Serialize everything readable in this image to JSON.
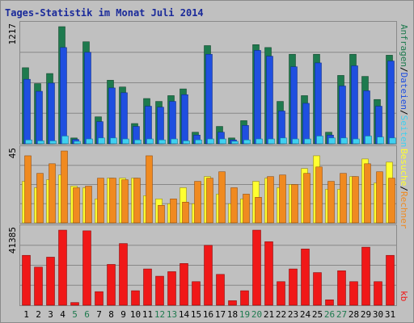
{
  "chart_data": {
    "title": "Tages-Statistik im Monat Juli 2014",
    "days": [
      "1",
      "2",
      "3",
      "4",
      "5",
      "6",
      "7",
      "8",
      "9",
      "10",
      "11",
      "12",
      "13",
      "14",
      "15",
      "16",
      "17",
      "18",
      "19",
      "20",
      "21",
      "22",
      "23",
      "24",
      "25",
      "26",
      "27",
      "28",
      "29",
      "30",
      "31"
    ],
    "weekend_days": [
      "5",
      "6",
      "12",
      "13",
      "19",
      "20",
      "26",
      "27"
    ],
    "colors": {
      "background": "#c0c0c0",
      "frame": "#8a8a8a",
      "gridline": "#888888",
      "anfragen": "#1e7a4e",
      "dateien": "#1f4fe0",
      "seiten": "#40d0f0",
      "besuche": "#ffff30",
      "rechner": "#f08a20",
      "kb": "#f01818",
      "weekday_label": "#000000",
      "weekend_label": "#1e7a4e",
      "title": "#1a2a9a"
    },
    "panels": [
      {
        "type": "bar",
        "ymax": "1217",
        "series": [
          {
            "name": "Anfragen",
            "values": [
              790,
              625,
              730,
              1217,
              60,
              1060,
              280,
              660,
              590,
              210,
              470,
              440,
              500,
              570,
              120,
              1020,
              180,
              60,
              240,
              1030,
              1000,
              440,
              930,
              500,
              930,
              120,
              710,
              930,
              700,
              460,
              920
            ]
          },
          {
            "name": "Dateien",
            "values": [
              670,
              545,
              630,
              1000,
              45,
              950,
              230,
              580,
              530,
              180,
              390,
              380,
              440,
              510,
              90,
              930,
              120,
              40,
              190,
              970,
              910,
              340,
              800,
              420,
              840,
              90,
              600,
              810,
              550,
              390,
              860
            ]
          },
          {
            "name": "Seiten",
            "values": [
              40,
              30,
              30,
              80,
              20,
              50,
              60,
              60,
              50,
              40,
              50,
              40,
              50,
              30,
              40,
              50,
              50,
              25,
              40,
              50,
              50,
              60,
              50,
              50,
              80,
              60,
              60,
              50,
              80,
              70,
              60
            ]
          }
        ]
      },
      {
        "type": "bar",
        "ymax": "45",
        "series": [
          {
            "name": "Besuche",
            "values": [
              26,
              22,
              27,
              30,
              23,
              22,
              15,
              28,
              28,
              28,
              17,
              15,
              12,
              22,
              12,
              29,
              18,
              12,
              15,
              26,
              28,
              22,
              24,
              34,
              42,
              21,
              21,
              29,
              40,
              25,
              38
            ]
          },
          {
            "name": "Rechner",
            "values": [
              42,
              31,
              37,
              45,
              22,
              23,
              28,
              28,
              27,
              28,
              42,
              11,
              15,
              13,
              26,
              28,
              32,
              22,
              18,
              16,
              29,
              30,
              24,
              31,
              35,
              26,
              31,
              29,
              37,
              32,
              28
            ]
          }
        ]
      },
      {
        "type": "bar",
        "ymax": "41385",
        "series": [
          {
            "name": "kb",
            "values": [
              27500,
              21000,
              26500,
              41385,
              1500,
              41000,
              7500,
              22500,
              34000,
              8000,
              20000,
              16000,
              18500,
              23000,
              13000,
              33000,
              17000,
              2500,
              8000,
              41385,
              35000,
              13000,
              20000,
              31000,
              18000,
              3000,
              19000,
              13000,
              32000,
              13000,
              27500
            ]
          }
        ]
      }
    ],
    "right_legend_top": [
      "Anfragen",
      "/",
      "Dateien",
      "/",
      "Seiten"
    ],
    "right_legend_middle": [
      "Besuche",
      "/",
      "Rechner"
    ],
    "right_legend_bottom": [
      "kb"
    ]
  }
}
